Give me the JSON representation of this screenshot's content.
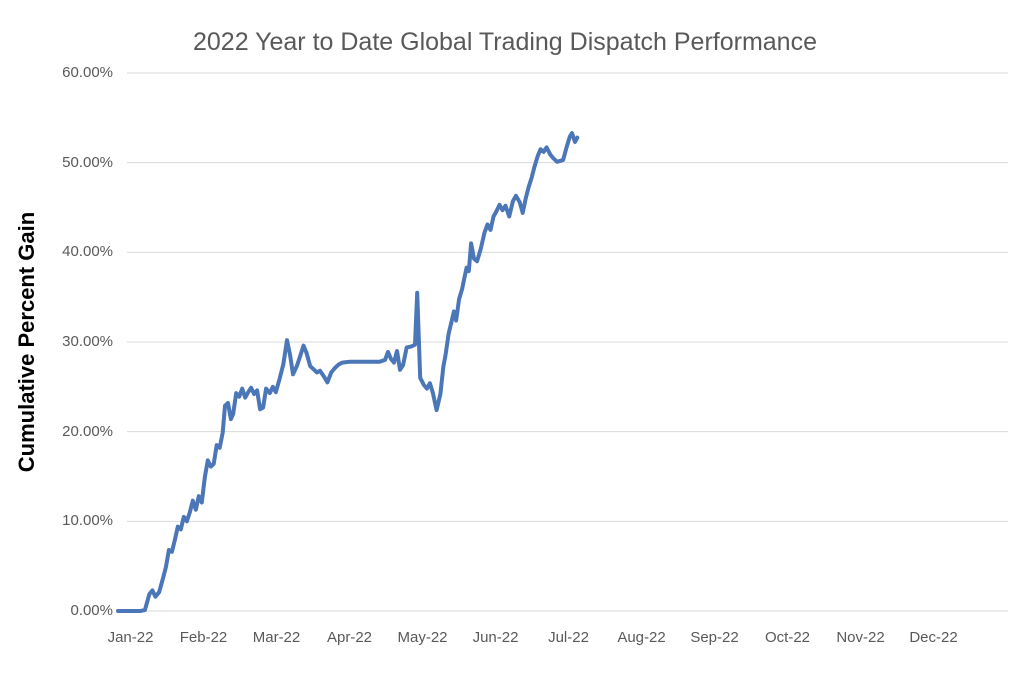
{
  "chart": {
    "title": "2022 Year to Date Global Trading Dispatch Performance",
    "colors": {
      "line": "#4b76b8",
      "grid": "#d9d9d9",
      "title_text": "#595959",
      "tick_text": "#595959",
      "axis_title_text": "#000000",
      "background": "#ffffff"
    }
  },
  "chart_data": {
    "type": "line",
    "title": "2022 Year to Date Global Trading Dispatch Performance",
    "xlabel": "",
    "ylabel": "Cumulative Percent Gain",
    "x_unit": "months since Jan 1, 2022 (0 = start of Jan-22; line ends ~6.14 = early Jul-22)",
    "y_unit": "cumulative percent gain (%)",
    "xlim": [
      0,
      12
    ],
    "ylim": [
      0,
      60
    ],
    "grid": "horizontal",
    "legend": false,
    "x_ticks": {
      "values": [
        0,
        1,
        2,
        3,
        4,
        5,
        6,
        7,
        8,
        9,
        10,
        11
      ],
      "labels": [
        "Jan-22",
        "Feb-22",
        "Mar-22",
        "Apr-22",
        "May-22",
        "Jun-22",
        "Jul-22",
        "Aug-22",
        "Sep-22",
        "Oct-22",
        "Nov-22",
        "Dec-22"
      ]
    },
    "y_ticks": {
      "values": [
        0,
        10,
        20,
        30,
        40,
        50,
        60
      ],
      "labels": [
        "0.00%",
        "10.00%",
        "20.00%",
        "30.00%",
        "40.00%",
        "50.00%",
        "60.00%"
      ]
    },
    "series": [
      {
        "name": "2022 YTD cumulative percent gain",
        "points": [
          [
            0.0,
            0.0
          ],
          [
            0.06,
            0.0
          ],
          [
            0.12,
            0.0
          ],
          [
            0.18,
            0.0
          ],
          [
            0.24,
            0.0
          ],
          [
            0.3,
            0.0
          ],
          [
            0.36,
            0.1
          ],
          [
            0.42,
            1.9
          ],
          [
            0.46,
            2.3
          ],
          [
            0.5,
            1.6
          ],
          [
            0.55,
            2.1
          ],
          [
            0.6,
            3.6
          ],
          [
            0.64,
            4.9
          ],
          [
            0.68,
            6.8
          ],
          [
            0.72,
            6.6
          ],
          [
            0.76,
            7.9
          ],
          [
            0.8,
            9.4
          ],
          [
            0.84,
            9.1
          ],
          [
            0.88,
            10.5
          ],
          [
            0.92,
            10.0
          ],
          [
            0.96,
            11.0
          ],
          [
            1.0,
            12.3
          ],
          [
            1.04,
            11.3
          ],
          [
            1.08,
            12.8
          ],
          [
            1.12,
            12.1
          ],
          [
            1.16,
            14.9
          ],
          [
            1.2,
            16.8
          ],
          [
            1.24,
            16.1
          ],
          [
            1.28,
            16.4
          ],
          [
            1.32,
            18.5
          ],
          [
            1.36,
            18.2
          ],
          [
            1.4,
            19.9
          ],
          [
            1.43,
            22.9
          ],
          [
            1.47,
            23.2
          ],
          [
            1.51,
            21.4
          ],
          [
            1.54,
            22.0
          ],
          [
            1.58,
            24.3
          ],
          [
            1.62,
            23.9
          ],
          [
            1.66,
            24.8
          ],
          [
            1.7,
            23.8
          ],
          [
            1.74,
            24.4
          ],
          [
            1.78,
            24.9
          ],
          [
            1.82,
            24.2
          ],
          [
            1.86,
            24.6
          ],
          [
            1.9,
            22.5
          ],
          [
            1.94,
            22.7
          ],
          [
            1.98,
            24.8
          ],
          [
            2.03,
            24.3
          ],
          [
            2.07,
            25.0
          ],
          [
            2.11,
            24.4
          ],
          [
            2.16,
            25.9
          ],
          [
            2.21,
            27.5
          ],
          [
            2.26,
            30.2
          ],
          [
            2.3,
            28.6
          ],
          [
            2.34,
            26.4
          ],
          [
            2.39,
            27.3
          ],
          [
            2.43,
            28.3
          ],
          [
            2.48,
            29.6
          ],
          [
            2.52,
            28.8
          ],
          [
            2.57,
            27.3
          ],
          [
            2.61,
            27.0
          ],
          [
            2.66,
            26.6
          ],
          [
            2.7,
            26.8
          ],
          [
            2.75,
            26.2
          ],
          [
            2.8,
            25.5
          ],
          [
            2.85,
            26.6
          ],
          [
            2.9,
            27.1
          ],
          [
            2.95,
            27.5
          ],
          [
            3.0,
            27.7
          ],
          [
            3.1,
            27.8
          ],
          [
            3.2,
            27.8
          ],
          [
            3.3,
            27.8
          ],
          [
            3.4,
            27.8
          ],
          [
            3.5,
            27.8
          ],
          [
            3.57,
            28.0
          ],
          [
            3.61,
            28.9
          ],
          [
            3.65,
            28.1
          ],
          [
            3.69,
            27.7
          ],
          [
            3.73,
            29.0
          ],
          [
            3.77,
            26.9
          ],
          [
            3.81,
            27.4
          ],
          [
            3.86,
            29.4
          ],
          [
            3.92,
            29.5
          ],
          [
            3.97,
            29.7
          ],
          [
            4.0,
            35.5
          ],
          [
            4.04,
            26.0
          ],
          [
            4.09,
            25.2
          ],
          [
            4.13,
            24.8
          ],
          [
            4.17,
            25.4
          ],
          [
            4.21,
            24.3
          ],
          [
            4.26,
            22.4
          ],
          [
            4.31,
            24.2
          ],
          [
            4.35,
            27.3
          ],
          [
            4.38,
            28.6
          ],
          [
            4.42,
            30.9
          ],
          [
            4.46,
            32.3
          ],
          [
            4.49,
            33.4
          ],
          [
            4.52,
            32.4
          ],
          [
            4.56,
            34.8
          ],
          [
            4.6,
            35.9
          ],
          [
            4.63,
            37.1
          ],
          [
            4.66,
            38.3
          ],
          [
            4.69,
            37.9
          ],
          [
            4.72,
            41.0
          ],
          [
            4.76,
            39.3
          ],
          [
            4.8,
            39.0
          ],
          [
            4.85,
            40.4
          ],
          [
            4.9,
            42.2
          ],
          [
            4.94,
            43.1
          ],
          [
            4.98,
            42.5
          ],
          [
            5.02,
            44.0
          ],
          [
            5.06,
            44.6
          ],
          [
            5.1,
            45.3
          ],
          [
            5.14,
            44.7
          ],
          [
            5.18,
            45.2
          ],
          [
            5.23,
            44.0
          ],
          [
            5.28,
            45.7
          ],
          [
            5.32,
            46.3
          ],
          [
            5.37,
            45.6
          ],
          [
            5.41,
            44.4
          ],
          [
            5.45,
            46.0
          ],
          [
            5.49,
            47.3
          ],
          [
            5.53,
            48.3
          ],
          [
            5.57,
            49.6
          ],
          [
            5.61,
            50.7
          ],
          [
            5.65,
            51.5
          ],
          [
            5.69,
            51.2
          ],
          [
            5.73,
            51.7
          ],
          [
            5.78,
            50.9
          ],
          [
            5.82,
            50.5
          ],
          [
            5.87,
            50.1
          ],
          [
            5.91,
            50.2
          ],
          [
            5.95,
            50.3
          ],
          [
            6.0,
            51.8
          ],
          [
            6.04,
            52.9
          ],
          [
            6.07,
            53.3
          ],
          [
            6.11,
            52.3
          ],
          [
            6.14,
            52.8
          ]
        ]
      }
    ]
  }
}
